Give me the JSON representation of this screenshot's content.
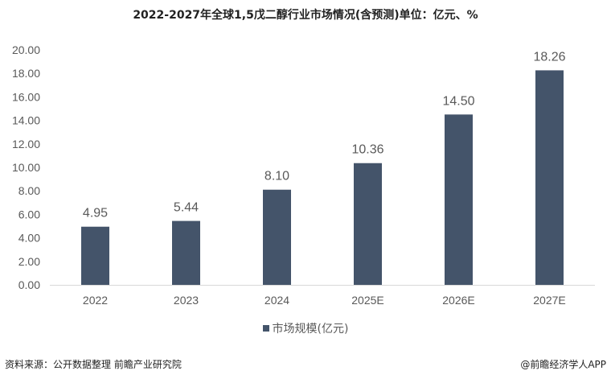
{
  "chart_data": {
    "type": "bar",
    "title": "2022-2027年全球1,5戊二醇行业市场情况(含预测)单位：亿元、%",
    "categories": [
      "2022",
      "2023",
      "2024",
      "2025E",
      "2026E",
      "2027E"
    ],
    "series": [
      {
        "name": "市场规模(亿元)",
        "values": [
          4.95,
          5.44,
          8.1,
          10.36,
          14.5,
          18.26
        ],
        "color": "#44546a"
      }
    ],
    "data_labels": [
      "4.95",
      "5.44",
      "8.10",
      "10.36",
      "14.50",
      "18.26"
    ],
    "ylim": [
      0,
      20
    ],
    "yticks": [
      "0.00",
      "2.00",
      "4.00",
      "6.00",
      "8.00",
      "10.00",
      "12.00",
      "14.00",
      "16.00",
      "18.00",
      "20.00"
    ],
    "grid": false,
    "legend_position": "bottom",
    "axis_color": "#d9d9d9"
  },
  "footer": {
    "source": "资料来源：公开数据整理 前瞻产业研究院",
    "watermark": "@前瞻经济学人APP"
  }
}
